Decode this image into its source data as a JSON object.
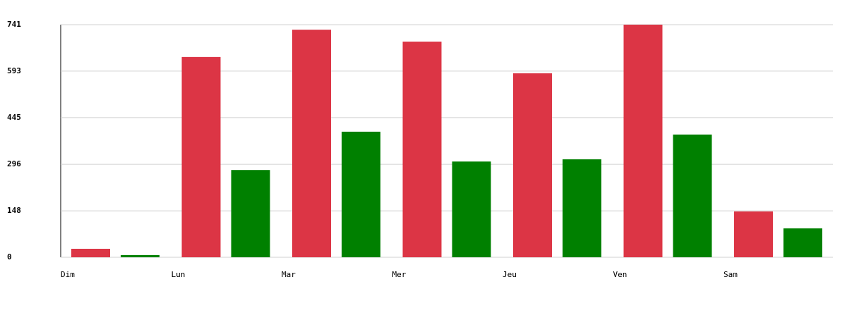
{
  "chart_data": {
    "type": "bar",
    "categories": [
      "Dim",
      "Lun",
      "Mar",
      "Mer",
      "Jeu",
      "Ven",
      "Sam"
    ],
    "series": [
      {
        "color": "#dc3545",
        "values": [
          27,
          638,
          725,
          687,
          586,
          741,
          146
        ]
      },
      {
        "color": "#008000",
        "values": [
          7,
          278,
          400,
          305,
          312,
          391,
          92
        ]
      }
    ],
    "ylim": [
      0,
      741
    ],
    "yticks": [
      0,
      148,
      296,
      445,
      593,
      741
    ],
    "grid": true
  }
}
